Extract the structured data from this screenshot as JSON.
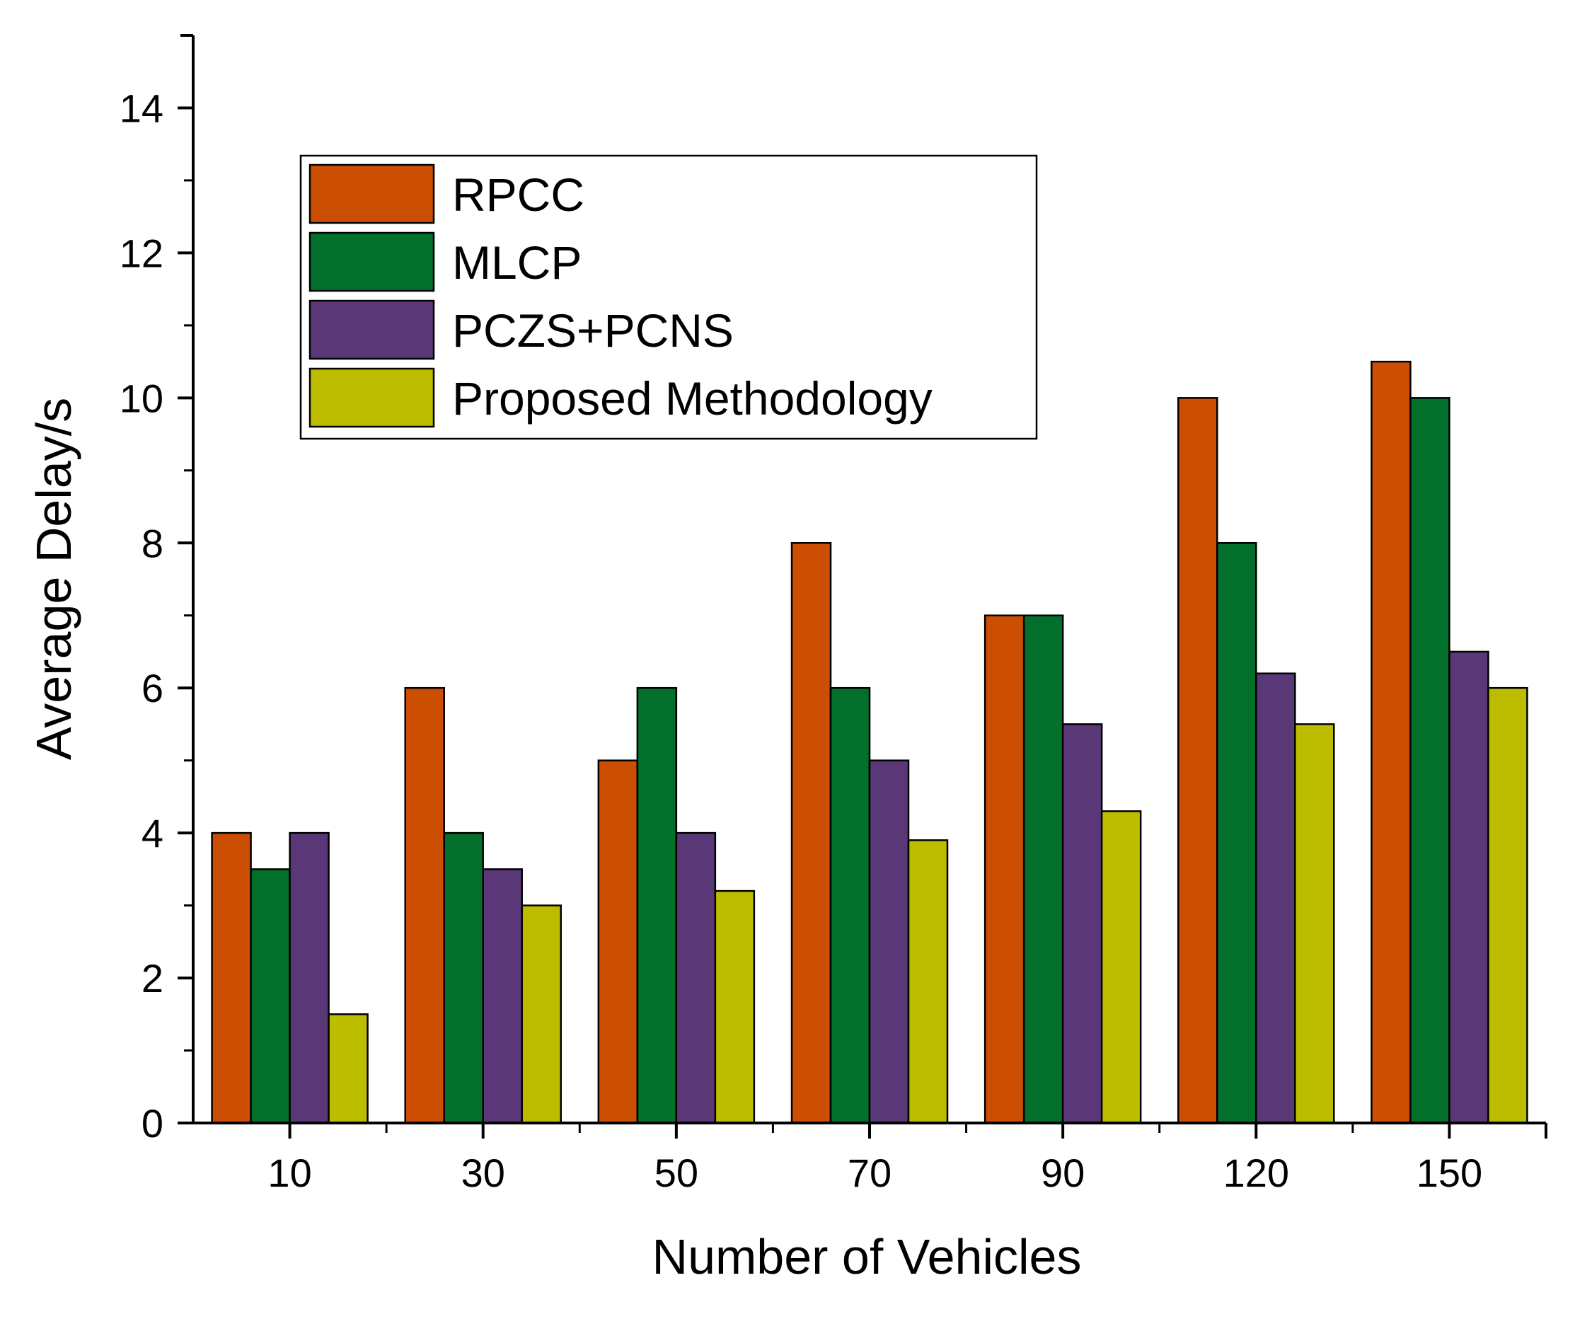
{
  "chart_data": {
    "type": "bar",
    "title": "",
    "xlabel": "Number of Vehicles",
    "ylabel": "Average Delay/s",
    "ylim": [
      0,
      15
    ],
    "yticks": [
      0,
      2,
      4,
      6,
      8,
      10,
      12,
      14
    ],
    "categories": [
      "10",
      "30",
      "50",
      "70",
      "90",
      "120",
      "150"
    ],
    "legend_position": "top-left",
    "series": [
      {
        "name": "RPCC",
        "color": "#cc4e03",
        "values": [
          4,
          6,
          5,
          8,
          7,
          10,
          10.5
        ]
      },
      {
        "name": "MLCP",
        "color": "#02702a",
        "values": [
          3.5,
          4,
          6,
          6,
          7,
          8,
          10
        ]
      },
      {
        "name": "PCZS+PCNS",
        "color": "#5a3877",
        "values": [
          4,
          3.5,
          4,
          5,
          5.5,
          6.2,
          6.5
        ]
      },
      {
        "name": "Proposed Methodology",
        "color": "#bdbd00",
        "values": [
          1.5,
          3,
          3.2,
          3.9,
          4.3,
          5.5,
          6
        ]
      }
    ]
  }
}
